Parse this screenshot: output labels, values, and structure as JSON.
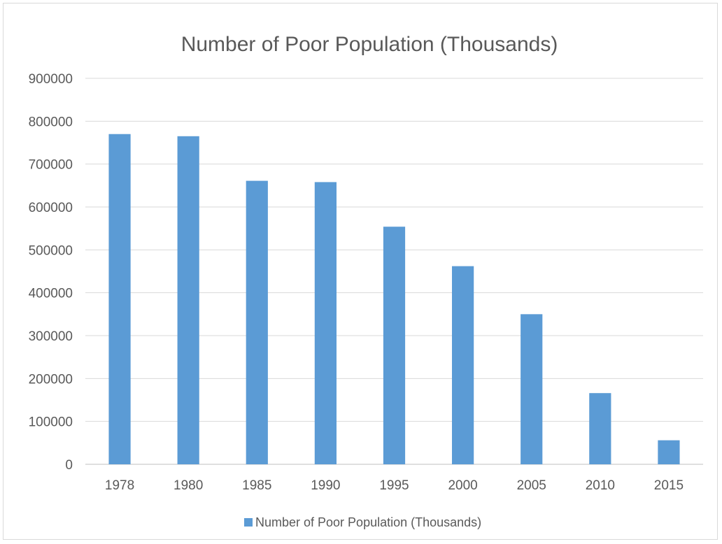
{
  "chart_data": {
    "type": "bar",
    "title": "Number of Poor Population (Thousands)",
    "xlabel": "",
    "ylabel": "",
    "categories": [
      "1978",
      "1980",
      "1985",
      "1990",
      "1995",
      "2000",
      "2005",
      "2010",
      "2015"
    ],
    "series": [
      {
        "name": "Number of Poor Population (Thousands)",
        "values": [
          770000,
          765000,
          661000,
          658000,
          554000,
          462000,
          350000,
          166000,
          56000
        ],
        "color": "#5b9bd5"
      }
    ],
    "ylim": [
      0,
      900000
    ],
    "yticks": [
      "0",
      "100000",
      "200000",
      "300000",
      "400000",
      "500000",
      "600000",
      "700000",
      "800000",
      "900000"
    ],
    "grid": true,
    "legend_position": "bottom"
  }
}
